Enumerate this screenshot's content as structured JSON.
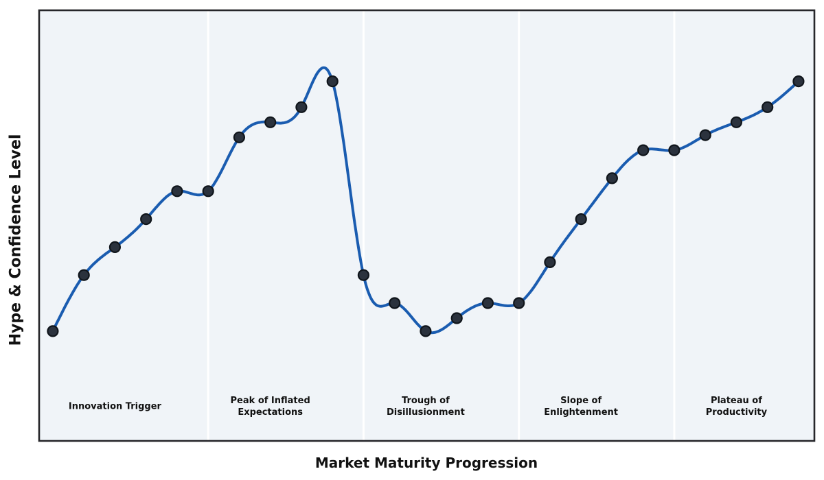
{
  "chart_data": {
    "type": "line",
    "title": "",
    "xlabel": "Market Maturity Progression",
    "ylabel": "Hype & Confidence Level",
    "x": [
      0,
      1,
      2,
      3,
      4,
      5,
      6,
      7,
      8,
      9,
      10,
      11,
      12,
      13,
      14,
      15,
      16,
      17,
      18,
      19,
      20,
      21,
      22,
      23,
      24
    ],
    "series": [
      {
        "name": "hype-confidence-level",
        "values": [
          25.5,
          38.5,
          45,
          51.5,
          58,
          58,
          70.5,
          74,
          77.5,
          83.5,
          38.5,
          32,
          25.5,
          28.5,
          32,
          32,
          41.5,
          51.5,
          61,
          67.5,
          67.5,
          71,
          74,
          77.5,
          83.5
        ]
      }
    ],
    "xlim": [
      -0.44,
      24.51
    ],
    "ylim": [
      0,
      100
    ],
    "grid": false,
    "legend": false,
    "ticks": "none",
    "smoothing": "cubic-spline",
    "markers": true,
    "phases": [
      {
        "label": "Innovation Trigger",
        "start": -0.44,
        "end": 5,
        "label_x": 2
      },
      {
        "label": "Peak of Inflated\nExpectations",
        "start": 5,
        "end": 10,
        "label_x": 7
      },
      {
        "label": "Trough of\nDisillusionment",
        "start": 10,
        "end": 15,
        "label_x": 12
      },
      {
        "label": "Slope of\nEnlightenment",
        "start": 15,
        "end": 20,
        "label_x": 17
      },
      {
        "label": "Plateau of\nProductivity",
        "start": 20,
        "end": 24.51,
        "label_x": 22
      }
    ],
    "colors": {
      "line": "#1A5CB0",
      "marker_fill": "#2B323D",
      "marker_edge": "#10151B",
      "plot_background": "#F0F4F8",
      "phase_divider": "#FFFFFF",
      "plot_border": "#26262A",
      "text": "#111111",
      "page_background": "#FFFFFF"
    }
  }
}
